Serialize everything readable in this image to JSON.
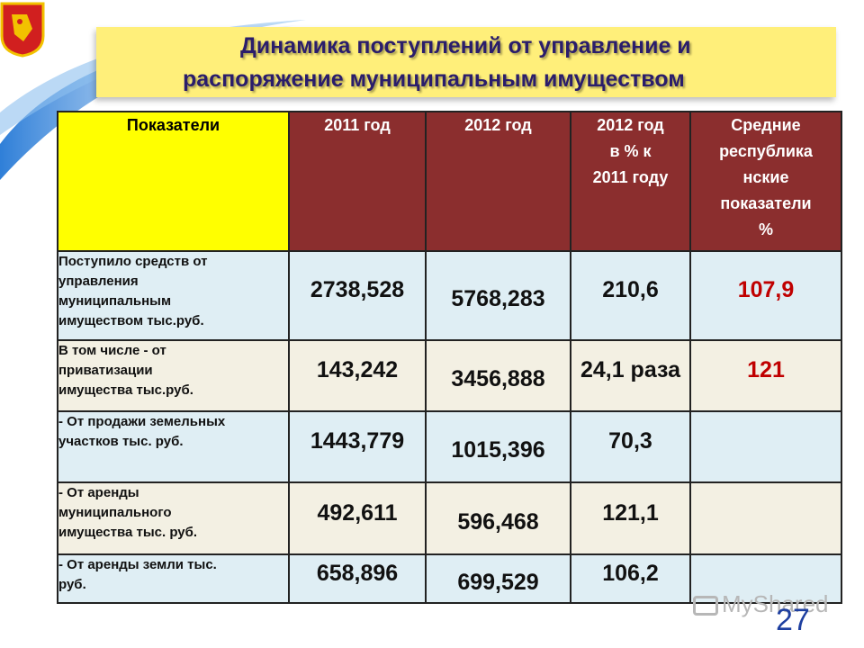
{
  "slide": {
    "title_line1": "Динамика поступлений от управление и",
    "title_line2": "распоряжение муниципальным имуществом",
    "page_number": "27",
    "watermark": "MyShared"
  },
  "table": {
    "headers": [
      "Показатели",
      "2011 год",
      "2012 год",
      "2012 год\nв % к\n2011 году",
      "Средние\nреспублика\nнские\nпоказатели\n%"
    ],
    "rows": [
      {
        "label": "Поступило средств от\nуправления\nмуниципальным\nимуществом тыс.руб.",
        "v2011": "2738,528",
        "v2012": "5768,283",
        "pct": "210,6",
        "avg": "107,9"
      },
      {
        "label": "В том числе  - от\nприватизации\nимущества тыс.руб.",
        "v2011": "143,242",
        "v2012": "3456,888",
        "pct": "24,1 раза",
        "avg": "121"
      },
      {
        "label": "- От продажи земельных\nучастков тыс. руб.",
        "v2011": "1443,779",
        "v2012": "1015,396",
        "pct": "70,3",
        "avg": ""
      },
      {
        "label": "- От аренды\nмуниципального\nимущества тыс. руб.",
        "v2011": "492,611",
        "v2012": "596,468",
        "pct": "121,1",
        "avg": ""
      },
      {
        "label": "- От аренды земли тыс.\nруб.",
        "v2011": "658,896",
        "v2012": "699,529",
        "pct": "106,2",
        "avg": ""
      }
    ]
  },
  "colors": {
    "header_bg": "#8b2e2e",
    "first_header_bg": "#ffff00",
    "title_bg": "#ffef7a",
    "highlight_text": "#c00000"
  }
}
